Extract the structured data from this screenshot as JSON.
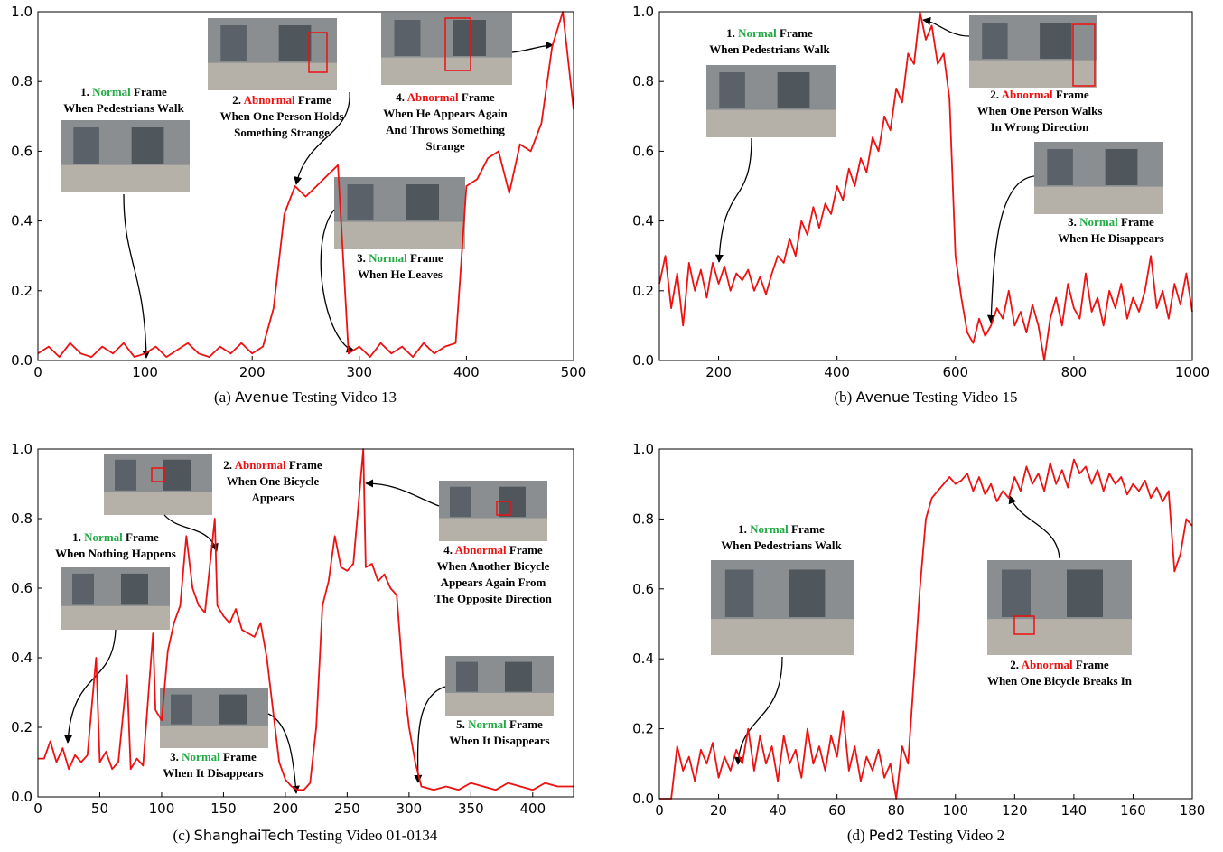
{
  "chart_data": [
    {
      "type": "line",
      "caption": {
        "label": "(a)",
        "dataset": "Avenue",
        "text": "Testing Video 13"
      },
      "xlim": [
        0,
        500
      ],
      "ylim": [
        0,
        1
      ],
      "xticks": [
        0,
        100,
        200,
        300,
        400,
        500
      ],
      "yticks": [
        {
          "value": 0,
          "label": "0.0"
        },
        0.2,
        0.4,
        0.6,
        0.8,
        {
          "value": 1,
          "label": "1.0"
        }
      ],
      "x": [
        0,
        10,
        20,
        30,
        40,
        50,
        60,
        70,
        80,
        90,
        100,
        110,
        120,
        130,
        140,
        150,
        160,
        170,
        180,
        190,
        200,
        210,
        220,
        230,
        240,
        250,
        260,
        270,
        280,
        290,
        300,
        310,
        320,
        330,
        340,
        350,
        360,
        370,
        380,
        390,
        400,
        410,
        420,
        430,
        440,
        450,
        460,
        470,
        480,
        490,
        500
      ],
      "series": [
        {
          "color": "#ee1111",
          "values": [
            0.02,
            0.04,
            0.01,
            0.05,
            0.02,
            0.01,
            0.04,
            0.02,
            0.05,
            0.01,
            0.02,
            0.04,
            0.01,
            0.03,
            0.05,
            0.02,
            0.01,
            0.04,
            0.02,
            0.05,
            0.02,
            0.04,
            0.15,
            0.42,
            0.5,
            0.47,
            0.5,
            0.53,
            0.56,
            0.02,
            0.04,
            0.01,
            0.05,
            0.02,
            0.04,
            0.01,
            0.05,
            0.02,
            0.04,
            0.05,
            0.5,
            0.52,
            0.58,
            0.6,
            0.48,
            0.62,
            0.6,
            0.68,
            0.9,
            1.0,
            0.72
          ]
        }
      ],
      "annotations": [
        {
          "index": "1.",
          "state": "Normal",
          "label": "Frame",
          "lines": [
            "When Pedestrians Walk"
          ]
        },
        {
          "index": "2.",
          "state": "Abnormal",
          "label": "Frame",
          "lines": [
            "When One Person Holds",
            "Something Strange"
          ]
        },
        {
          "index": "3.",
          "state": "Normal",
          "label": "Frame",
          "lines": [
            "When He Leaves"
          ]
        },
        {
          "index": "4.",
          "state": "Abnormal",
          "label": "Frame",
          "lines": [
            "When He Appears Again",
            "And Throws Something",
            "Strange"
          ]
        }
      ]
    },
    {
      "type": "line",
      "caption": {
        "label": "(b)",
        "dataset": "Avenue",
        "text": "Testing Video 15"
      },
      "xlim": [
        100,
        1000
      ],
      "ylim": [
        0,
        1
      ],
      "xticks": [
        200,
        400,
        600,
        800,
        1000
      ],
      "yticks": [
        {
          "value": 0,
          "label": "0.0"
        },
        0.2,
        0.4,
        0.6,
        0.8,
        {
          "value": 1,
          "label": "1.0"
        }
      ],
      "x": [
        100,
        110,
        120,
        130,
        140,
        150,
        160,
        170,
        180,
        190,
        200,
        210,
        220,
        230,
        240,
        250,
        260,
        270,
        280,
        290,
        300,
        310,
        320,
        330,
        340,
        350,
        360,
        370,
        380,
        390,
        400,
        410,
        420,
        430,
        440,
        450,
        460,
        470,
        480,
        490,
        500,
        510,
        520,
        530,
        540,
        550,
        560,
        570,
        580,
        590,
        600,
        610,
        620,
        630,
        640,
        650,
        660,
        670,
        680,
        690,
        700,
        710,
        720,
        730,
        740,
        750,
        760,
        770,
        780,
        790,
        800,
        810,
        820,
        830,
        840,
        850,
        860,
        870,
        880,
        890,
        900,
        910,
        920,
        930,
        940,
        950,
        960,
        970,
        980,
        990,
        1000
      ],
      "series": [
        {
          "color": "#ee1111",
          "values": [
            0.22,
            0.3,
            0.15,
            0.25,
            0.1,
            0.28,
            0.2,
            0.26,
            0.18,
            0.28,
            0.22,
            0.27,
            0.2,
            0.25,
            0.23,
            0.26,
            0.2,
            0.24,
            0.19,
            0.25,
            0.3,
            0.28,
            0.35,
            0.3,
            0.4,
            0.36,
            0.44,
            0.38,
            0.45,
            0.42,
            0.5,
            0.46,
            0.55,
            0.5,
            0.58,
            0.54,
            0.64,
            0.6,
            0.7,
            0.66,
            0.78,
            0.74,
            0.88,
            0.85,
            1.0,
            0.92,
            0.96,
            0.85,
            0.88,
            0.75,
            0.3,
            0.18,
            0.08,
            0.05,
            0.12,
            0.07,
            0.1,
            0.15,
            0.12,
            0.2,
            0.1,
            0.14,
            0.08,
            0.16,
            0.1,
            0.0,
            0.12,
            0.18,
            0.1,
            0.22,
            0.15,
            0.12,
            0.25,
            0.14,
            0.18,
            0.1,
            0.2,
            0.15,
            0.22,
            0.12,
            0.18,
            0.14,
            0.2,
            0.3,
            0.15,
            0.2,
            0.12,
            0.22,
            0.16,
            0.25,
            0.14
          ]
        }
      ],
      "annotations": [
        {
          "index": "1.",
          "state": "Normal",
          "label": "Frame",
          "lines": [
            "When Pedestrians Walk"
          ]
        },
        {
          "index": "2.",
          "state": "Abnormal",
          "label": "Frame",
          "lines": [
            "When One Person Walks",
            "In Wrong Direction"
          ]
        },
        {
          "index": "3.",
          "state": "Normal",
          "label": "Frame",
          "lines": [
            "When He Disappears"
          ]
        }
      ]
    },
    {
      "type": "line",
      "caption": {
        "label": "(c)",
        "dataset": "ShanghaiTech",
        "text": "Testing Video 01-0134"
      },
      "xlim": [
        0,
        433
      ],
      "ylim": [
        0,
        1
      ],
      "xticks": [
        0,
        50,
        100,
        150,
        200,
        250,
        300,
        350,
        400
      ],
      "yticks": [
        {
          "value": 0,
          "label": "0.0"
        },
        0.2,
        0.4,
        0.6,
        0.8,
        {
          "value": 1,
          "label": "1.0"
        }
      ],
      "x": [
        0,
        5,
        10,
        15,
        20,
        25,
        30,
        35,
        40,
        47,
        50,
        55,
        60,
        65,
        72,
        75,
        80,
        85,
        93,
        95,
        100,
        105,
        110,
        115,
        120,
        125,
        130,
        135,
        143,
        145,
        150,
        155,
        160,
        165,
        170,
        175,
        180,
        185,
        190,
        195,
        200,
        205,
        210,
        215,
        220,
        225,
        230,
        235,
        240,
        245,
        250,
        255,
        263,
        265,
        270,
        275,
        280,
        285,
        290,
        295,
        300,
        305,
        310,
        320,
        330,
        340,
        350,
        360,
        370,
        380,
        390,
        400,
        410,
        420,
        433
      ],
      "series": [
        {
          "color": "#ee1111",
          "values": [
            0.11,
            0.11,
            0.16,
            0.1,
            0.14,
            0.08,
            0.12,
            0.1,
            0.12,
            0.4,
            0.1,
            0.13,
            0.08,
            0.1,
            0.35,
            0.08,
            0.11,
            0.09,
            0.47,
            0.25,
            0.22,
            0.42,
            0.5,
            0.55,
            0.75,
            0.6,
            0.55,
            0.53,
            0.8,
            0.55,
            0.52,
            0.5,
            0.54,
            0.48,
            0.47,
            0.46,
            0.5,
            0.4,
            0.25,
            0.1,
            0.05,
            0.03,
            0.02,
            0.02,
            0.04,
            0.2,
            0.55,
            0.62,
            0.75,
            0.66,
            0.65,
            0.67,
            1.0,
            0.66,
            0.67,
            0.62,
            0.64,
            0.6,
            0.58,
            0.35,
            0.2,
            0.1,
            0.03,
            0.02,
            0.03,
            0.02,
            0.04,
            0.03,
            0.02,
            0.04,
            0.03,
            0.02,
            0.04,
            0.03,
            0.03
          ]
        }
      ],
      "annotations": [
        {
          "index": "1.",
          "state": "Normal",
          "label": "Frame",
          "lines": [
            "When Nothing Happens"
          ]
        },
        {
          "index": "2.",
          "state": "Abnormal",
          "label": "Frame",
          "lines": [
            "When One Bicycle",
            "Appears"
          ]
        },
        {
          "index": "3.",
          "state": "Normal",
          "label": "Frame",
          "lines": [
            "When It Disappears"
          ]
        },
        {
          "index": "4.",
          "state": "Abnormal",
          "label": "Frame",
          "lines": [
            "When Another Bicycle",
            "Appears Again From",
            "The Opposite Direction"
          ]
        },
        {
          "index": "5.",
          "state": "Normal",
          "label": "Frame",
          "lines": [
            "When It Disappears"
          ]
        }
      ]
    },
    {
      "type": "line",
      "caption": {
        "label": "(d)",
        "dataset": "Ped2",
        "text": "Testing Video 2"
      },
      "xlim": [
        0,
        180
      ],
      "ylim": [
        0,
        1
      ],
      "xticks": [
        0,
        20,
        40,
        60,
        80,
        100,
        120,
        140,
        160,
        180
      ],
      "yticks": [
        {
          "value": 0,
          "label": "0.0"
        },
        0.2,
        0.4,
        0.6,
        0.8,
        {
          "value": 1,
          "label": "1.0"
        }
      ],
      "x": [
        0,
        2,
        4,
        6,
        8,
        10,
        12,
        14,
        16,
        18,
        20,
        22,
        24,
        26,
        28,
        30,
        32,
        34,
        36,
        38,
        40,
        42,
        44,
        46,
        48,
        50,
        52,
        54,
        56,
        58,
        60,
        62,
        64,
        66,
        68,
        70,
        72,
        74,
        76,
        78,
        80,
        82,
        84,
        86,
        88,
        90,
        92,
        94,
        96,
        98,
        100,
        102,
        104,
        106,
        108,
        110,
        112,
        114,
        116,
        118,
        120,
        122,
        124,
        126,
        128,
        130,
        132,
        134,
        136,
        138,
        140,
        142,
        144,
        146,
        148,
        150,
        152,
        154,
        156,
        158,
        160,
        162,
        164,
        166,
        168,
        170,
        172,
        174,
        176,
        178,
        180
      ],
      "series": [
        {
          "color": "#ee1111",
          "values": [
            0,
            0,
            0,
            0.15,
            0.08,
            0.12,
            0.05,
            0.14,
            0.1,
            0.16,
            0.06,
            0.12,
            0.08,
            0.14,
            0.1,
            0.2,
            0.08,
            0.18,
            0.1,
            0.15,
            0.05,
            0.18,
            0.1,
            0.14,
            0.06,
            0.2,
            0.1,
            0.15,
            0.08,
            0.18,
            0.12,
            0.25,
            0.08,
            0.15,
            0.05,
            0.12,
            0.08,
            0.14,
            0.06,
            0.1,
            0.0,
            0.15,
            0.1,
            0.35,
            0.6,
            0.8,
            0.86,
            0.88,
            0.9,
            0.92,
            0.9,
            0.91,
            0.93,
            0.88,
            0.92,
            0.87,
            0.9,
            0.85,
            0.88,
            0.86,
            0.92,
            0.88,
            0.95,
            0.9,
            0.93,
            0.88,
            0.96,
            0.9,
            0.94,
            0.89,
            0.97,
            0.93,
            0.95,
            0.9,
            0.94,
            0.88,
            0.93,
            0.9,
            0.92,
            0.87,
            0.9,
            0.88,
            0.91,
            0.86,
            0.89,
            0.85,
            0.88,
            0.65,
            0.7,
            0.8,
            0.78
          ]
        }
      ],
      "annotations": [
        {
          "index": "1.",
          "state": "Normal",
          "label": "Frame",
          "lines": [
            "When Pedestrians Walk"
          ]
        },
        {
          "index": "2.",
          "state": "Abnormal",
          "label": "Frame",
          "lines": [
            "When One Bicycle Breaks In"
          ]
        }
      ]
    }
  ]
}
